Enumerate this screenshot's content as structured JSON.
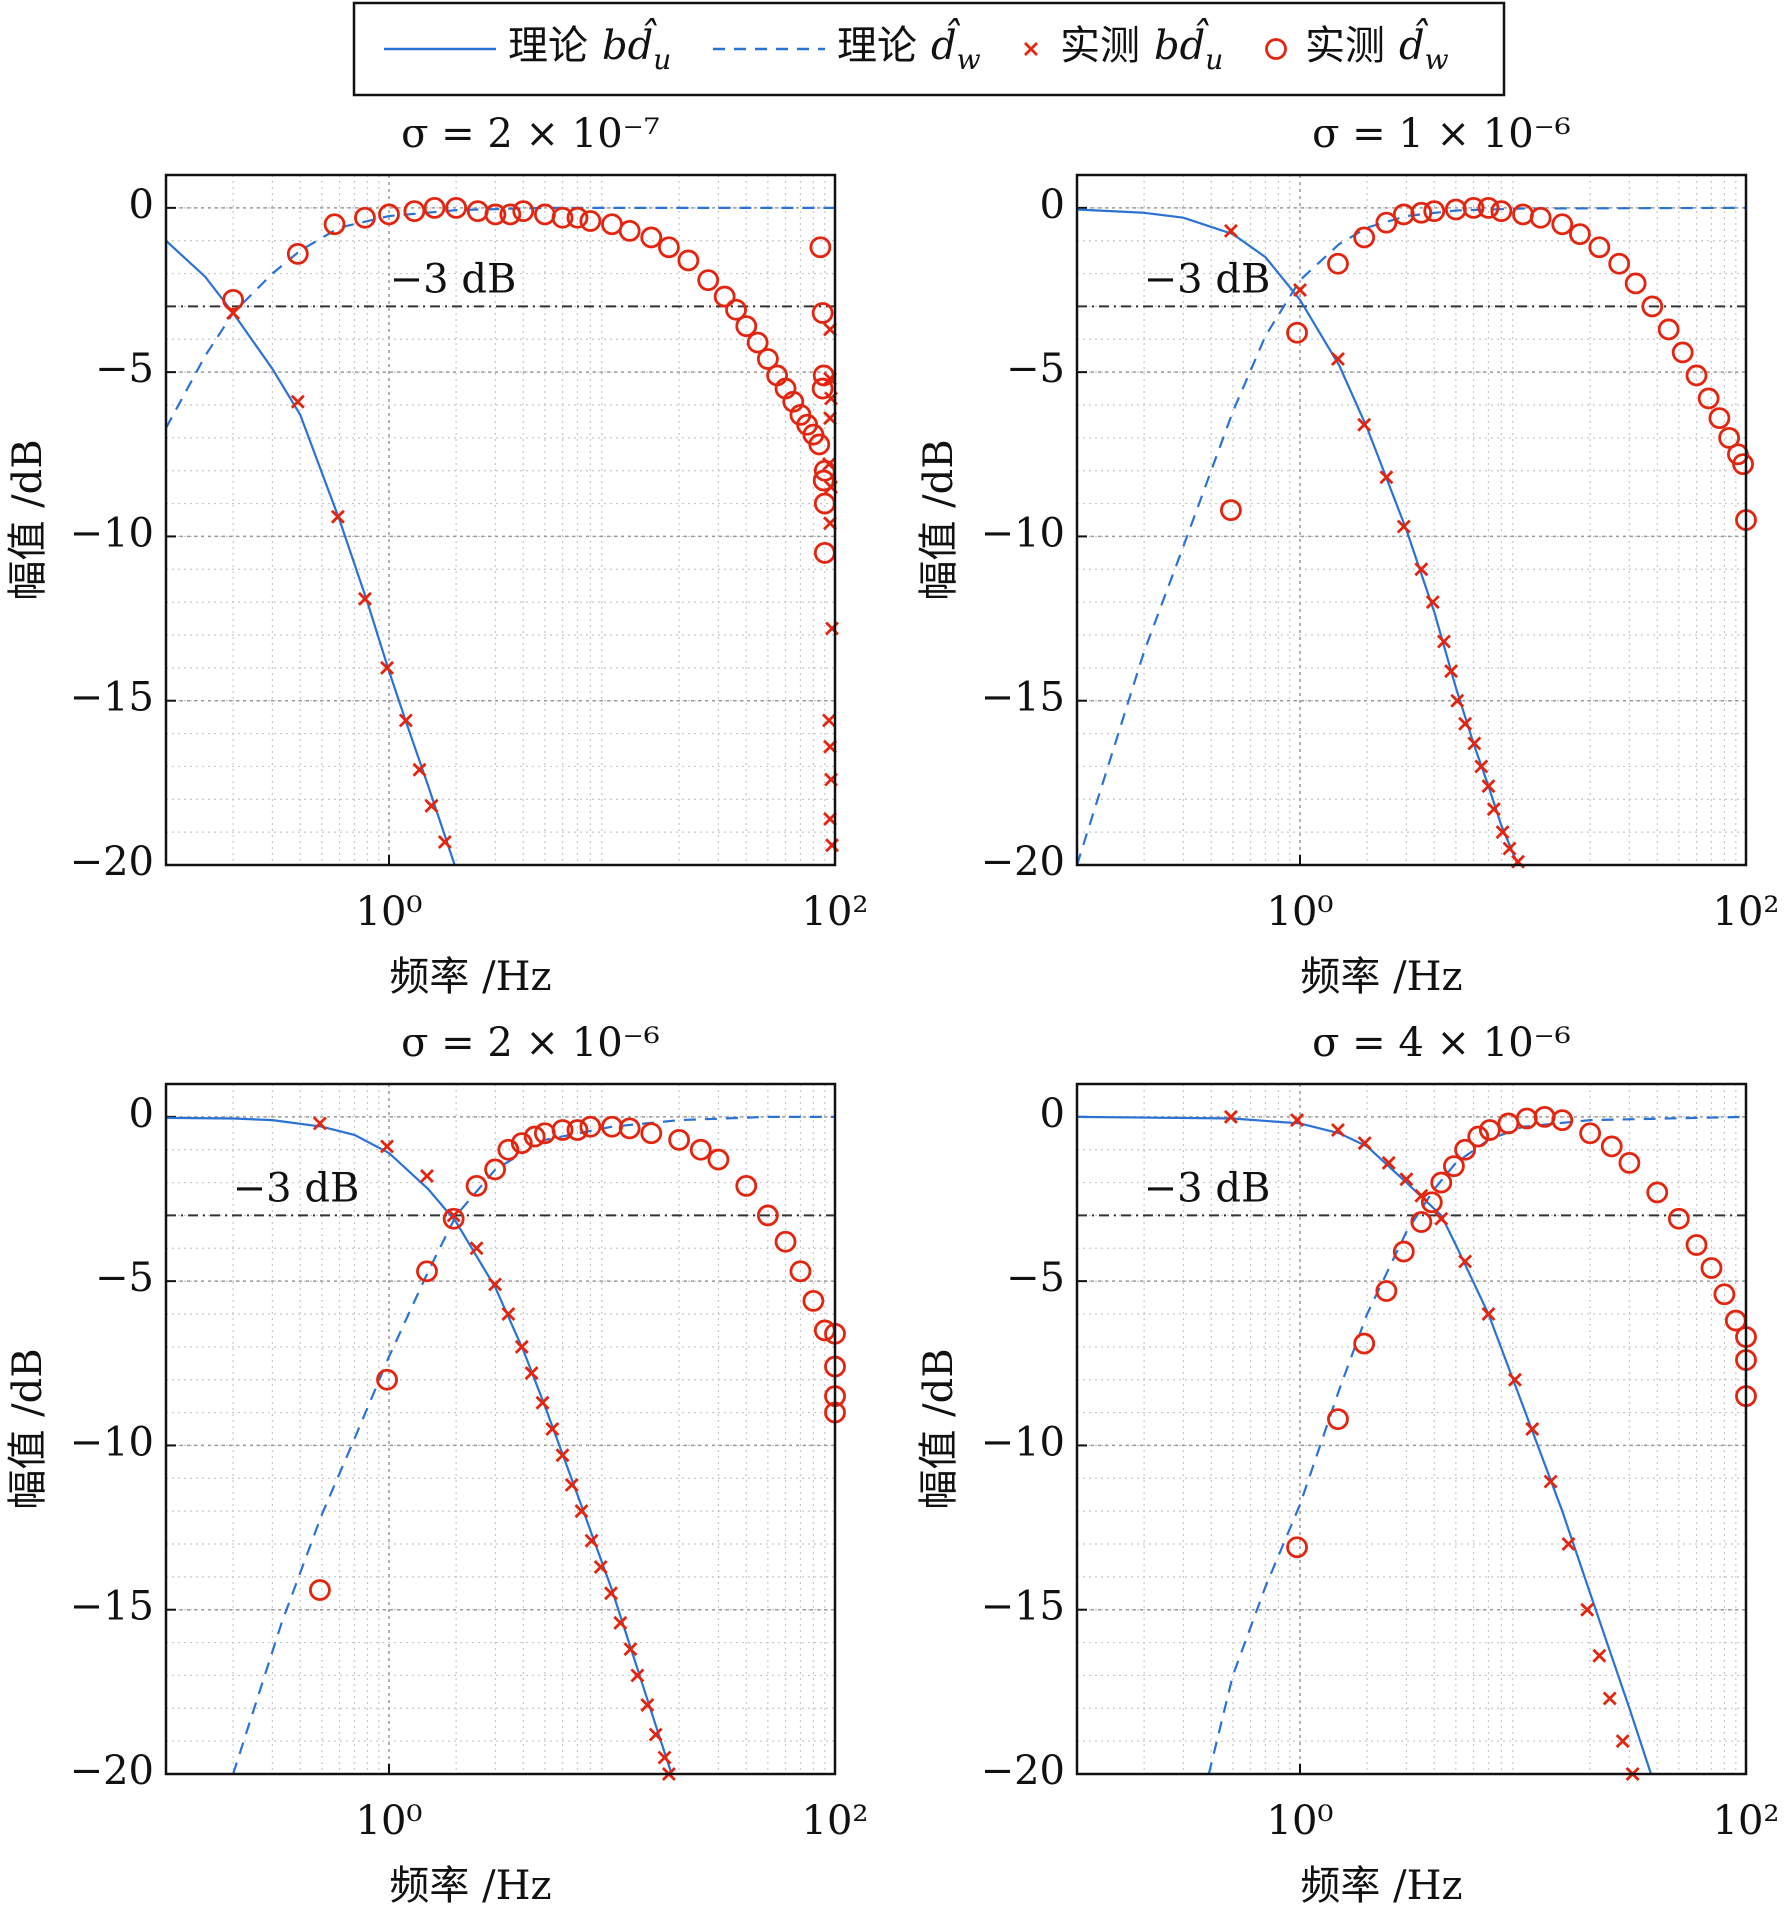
{
  "legend": {
    "entries": [
      {
        "label": "理论",
        "symbol": "bd̂",
        "subscript": "u",
        "color": "#2a72d4",
        "style": "solid"
      },
      {
        "label": "理论",
        "symbol": "d̂",
        "subscript": "w",
        "color": "#2a72d4",
        "style": "dashed"
      },
      {
        "label": "实测",
        "symbol": "bd̂",
        "subscript": "u",
        "color": "#e3250f",
        "marker": "x"
      },
      {
        "label": "实测",
        "symbol": "d̂",
        "subscript": "w",
        "color": "#e3250f",
        "marker": "o"
      }
    ]
  },
  "chart_data": [
    {
      "type": "line",
      "title": "σ = 2 × 10⁻⁷",
      "xlabel": "频率 /Hz",
      "ylabel": "幅值 /dB",
      "xscale": "log",
      "grid": true,
      "xlim": [
        0.1,
        100
      ],
      "xticks": [
        {
          "value": 1,
          "label": "10⁰"
        },
        {
          "value": 100,
          "label": "10²"
        }
      ],
      "ylim": [
        -20,
        1
      ],
      "yticks": [
        {
          "value": -20,
          "label": "−20"
        },
        {
          "value": -15,
          "label": "−15"
        },
        {
          "value": -10,
          "label": "−10"
        },
        {
          "value": -5,
          "label": "−5"
        },
        0
      ],
      "hline": {
        "value": -3,
        "label": "−3 dB"
      },
      "series": [
        {
          "type": "line",
          "style": "solid",
          "color": "#2a72d4",
          "x": [
            0.1,
            0.15,
            0.2,
            0.3,
            0.4,
            0.6,
            0.8,
            1,
            1.2,
            1.5,
            1.97
          ],
          "values": [
            -1.0,
            -2.1,
            -3.2,
            -4.9,
            -6.3,
            -9.5,
            -12,
            -14.1,
            -15.7,
            -17.6,
            -20
          ]
        },
        {
          "type": "line",
          "style": "dashed",
          "color": "#2a72d4",
          "x": [
            0.1,
            0.15,
            0.2,
            0.3,
            0.4,
            0.6,
            1,
            2,
            5,
            100
          ],
          "values": [
            -6.7,
            -4.5,
            -3.2,
            -2.0,
            -1.3,
            -0.6,
            -0.25,
            -0.07,
            0,
            0
          ]
        },
        {
          "type": "scatter",
          "marker": "x",
          "color": "#e3250f",
          "x": [
            0.2,
            0.39,
            0.59,
            0.78,
            0.98,
            1.19,
            1.37,
            1.55,
            1.78,
            95,
            95,
            96,
            95,
            94,
            96,
            95,
            97,
            94,
            95,
            96,
            95,
            97
          ],
          "values": [
            -3.2,
            -5.9,
            -9.4,
            -11.9,
            -14,
            -15.6,
            -17.1,
            -18.2,
            -19.3,
            -3.7,
            -5.2,
            -5.8,
            -6.4,
            -7.8,
            -8.5,
            -9.6,
            -12.8,
            -15.6,
            -16.4,
            -17.4,
            -18.6,
            -19.4
          ]
        },
        {
          "type": "scatter",
          "marker": "o",
          "color": "#e3250f",
          "x": [
            0.2,
            0.39,
            0.57,
            0.78,
            1,
            1.3,
            1.6,
            2,
            2.5,
            3,
            3.5,
            4,
            5,
            6,
            7,
            8,
            10,
            12,
            15,
            18,
            22,
            27,
            32,
            36,
            40,
            45,
            50,
            55,
            60,
            65,
            70,
            75,
            80,
            85,
            86,
            88,
            90,
            89,
            88,
            90,
            89,
            90
          ],
          "values": [
            -2.8,
            -1.4,
            -0.5,
            -0.3,
            -0.2,
            -0.1,
            0,
            0,
            -0.1,
            -0.2,
            -0.2,
            -0.1,
            -0.2,
            -0.3,
            -0.3,
            -0.4,
            -0.5,
            -0.7,
            -0.9,
            -1.2,
            -1.6,
            -2.2,
            -2.7,
            -3.1,
            -3.6,
            -4.1,
            -4.6,
            -5.1,
            -5.5,
            -5.9,
            -6.3,
            -6.6,
            -6.9,
            -7.2,
            -1.2,
            -3.2,
            -10.5,
            -5.1,
            -5.5,
            -8.0,
            -8.3,
            -9.0
          ]
        }
      ]
    },
    {
      "type": "line",
      "title": "σ = 1 × 10⁻⁶",
      "xlabel": "频率 /Hz",
      "ylabel": "幅值 /dB",
      "xscale": "log",
      "grid": true,
      "xlim": [
        0.1,
        100
      ],
      "xticks": [
        {
          "value": 1,
          "label": "10⁰"
        },
        {
          "value": 100,
          "label": "10²"
        }
      ],
      "ylim": [
        -20,
        1
      ],
      "yticks": [
        {
          "value": -20,
          "label": "−20"
        },
        {
          "value": -15,
          "label": "−15"
        },
        {
          "value": -10,
          "label": "−10"
        },
        {
          "value": -5,
          "label": "−5"
        },
        0
      ],
      "hline": {
        "value": -3,
        "label": "−3 dB"
      },
      "series": [
        {
          "type": "line",
          "style": "solid",
          "color": "#2a72d4",
          "x": [
            0.1,
            0.2,
            0.3,
            0.5,
            0.7,
            1,
            1.5,
            2,
            3,
            4,
            5,
            6,
            7,
            8,
            9.5
          ],
          "values": [
            -0.05,
            -0.15,
            -0.3,
            -0.8,
            -1.5,
            -2.8,
            -4.8,
            -6.7,
            -9.8,
            -12.3,
            -14.6,
            -16.3,
            -17.6,
            -18.8,
            -20
          ]
        },
        {
          "type": "line",
          "style": "dashed",
          "color": "#2a72d4",
          "x": [
            0.1,
            0.2,
            0.3,
            0.5,
            0.7,
            1,
            1.5,
            2,
            3,
            5,
            10,
            100
          ],
          "values": [
            -20,
            -13.5,
            -10.3,
            -6.2,
            -3.9,
            -2.2,
            -1.1,
            -0.6,
            -0.25,
            -0.08,
            -0.02,
            0
          ]
        },
        {
          "type": "scatter",
          "marker": "x",
          "color": "#e3250f",
          "x": [
            0.49,
            1,
            1.48,
            1.94,
            2.44,
            2.92,
            3.5,
            3.94,
            4.42,
            4.76,
            5.07,
            5.5,
            6.05,
            6.5,
            7,
            7.4,
            8.1,
            8.7,
            9.5
          ],
          "values": [
            -0.7,
            -2.5,
            -4.6,
            -6.6,
            -8.2,
            -9.7,
            -11,
            -12,
            -13.2,
            -14.1,
            -15,
            -15.7,
            -16.3,
            -17,
            -17.6,
            -18.3,
            -19,
            -19.5,
            -19.9
          ]
        },
        {
          "type": "scatter",
          "marker": "o",
          "color": "#e3250f",
          "x": [
            0.49,
            0.97,
            1.48,
            1.94,
            2.44,
            2.92,
            3.5,
            4,
            5,
            6,
            7,
            8,
            10,
            12,
            15,
            18,
            22,
            27,
            32,
            38,
            45,
            52,
            60,
            68,
            76,
            84,
            92,
            97,
            100
          ],
          "values": [
            -9.2,
            -3.8,
            -1.7,
            -0.9,
            -0.45,
            -0.2,
            -0.15,
            -0.1,
            -0.05,
            0,
            0,
            -0.1,
            -0.2,
            -0.3,
            -0.5,
            -0.8,
            -1.2,
            -1.7,
            -2.3,
            -3.0,
            -3.7,
            -4.4,
            -5.1,
            -5.8,
            -6.4,
            -7.0,
            -7.5,
            -7.8,
            -9.5
          ]
        }
      ]
    },
    {
      "type": "line",
      "title": "σ = 2 × 10⁻⁶",
      "xlabel": "频率 /Hz",
      "ylabel": "幅值 /dB",
      "xscale": "log",
      "grid": true,
      "xlim": [
        0.1,
        100
      ],
      "xticks": [
        {
          "value": 1,
          "label": "10⁰"
        },
        {
          "value": 100,
          "label": "10²"
        }
      ],
      "ylim": [
        -20,
        1
      ],
      "yticks": [
        {
          "value": -20,
          "label": "−20"
        },
        {
          "value": -15,
          "label": "−15"
        },
        {
          "value": -10,
          "label": "−10"
        },
        {
          "value": -5,
          "label": "−5"
        },
        0
      ],
      "hline": {
        "value": -3,
        "label": "−3 dB"
      },
      "series": [
        {
          "type": "line",
          "style": "solid",
          "color": "#2a72d4",
          "x": [
            0.1,
            0.2,
            0.3,
            0.5,
            0.7,
            1,
            1.5,
            2,
            3,
            4,
            5,
            7,
            10,
            15,
            18.5
          ],
          "values": [
            -0.03,
            -0.05,
            -0.1,
            -0.3,
            -0.55,
            -1.1,
            -2.2,
            -3.2,
            -5.2,
            -7.1,
            -8.8,
            -11.5,
            -14.4,
            -18.1,
            -20
          ]
        },
        {
          "type": "line",
          "style": "dashed",
          "color": "#2a72d4",
          "x": [
            0.2,
            0.33,
            0.5,
            0.7,
            1,
            1.5,
            2,
            3,
            5,
            10,
            20,
            50,
            100
          ],
          "values": [
            -20,
            -15.4,
            -12.1,
            -9.8,
            -7.3,
            -4.7,
            -3.0,
            -1.6,
            -0.7,
            -0.3,
            -0.1,
            0,
            0
          ]
        },
        {
          "type": "scatter",
          "marker": "x",
          "color": "#e3250f",
          "x": [
            0.49,
            0.98,
            1.48,
            1.95,
            2.47,
            2.99,
            3.43,
            3.94,
            4.36,
            4.88,
            5.4,
            6,
            6.6,
            7.3,
            8.1,
            8.9,
            9.9,
            10.9,
            12.1,
            13,
            14.4,
            15.7,
            17.2,
            18
          ],
          "values": [
            -0.2,
            -0.9,
            -1.8,
            -3.0,
            -4.0,
            -5.1,
            -6.0,
            -7.0,
            -7.8,
            -8.7,
            -9.5,
            -10.3,
            -11.2,
            -12,
            -12.9,
            -13.7,
            -14.5,
            -15.4,
            -16.2,
            -17,
            -17.9,
            -18.8,
            -19.5,
            -20
          ]
        },
        {
          "type": "scatter",
          "marker": "o",
          "color": "#e3250f",
          "x": [
            0.49,
            0.98,
            1.48,
            1.95,
            2.47,
            2.99,
            3.43,
            3.94,
            4.5,
            5,
            6,
            7,
            8,
            10,
            12,
            15,
            20,
            25,
            30,
            40,
            50,
            60,
            70,
            80,
            90,
            100,
            100,
            100,
            100
          ],
          "values": [
            -14.4,
            -8,
            -4.7,
            -3.1,
            -2.1,
            -1.6,
            -1.0,
            -0.8,
            -0.6,
            -0.5,
            -0.4,
            -0.4,
            -0.3,
            -0.3,
            -0.35,
            -0.5,
            -0.7,
            -1.0,
            -1.3,
            -2.1,
            -3.0,
            -3.8,
            -4.7,
            -5.6,
            -6.5,
            -7.6,
            -6.6,
            -8.5,
            -9.0
          ]
        }
      ]
    },
    {
      "type": "line",
      "title": "σ = 4 × 10⁻⁶",
      "xlabel": "频率 /Hz",
      "ylabel": "幅值 /dB",
      "xscale": "log",
      "grid": true,
      "xlim": [
        0.1,
        100
      ],
      "xticks": [
        {
          "value": 1,
          "label": "10⁰"
        },
        {
          "value": 100,
          "label": "10²"
        }
      ],
      "ylim": [
        -20,
        1
      ],
      "yticks": [
        {
          "value": -20,
          "label": "−20"
        },
        {
          "value": -15,
          "label": "−15"
        },
        {
          "value": -10,
          "label": "−10"
        },
        {
          "value": -5,
          "label": "−5"
        },
        0
      ],
      "hline": {
        "value": -3,
        "label": "−3 dB"
      },
      "series": [
        {
          "type": "line",
          "style": "solid",
          "color": "#2a72d4",
          "x": [
            0.1,
            0.5,
            1,
            1.5,
            2,
            3,
            4.3,
            5,
            7,
            10,
            15,
            20,
            30,
            37.5
          ],
          "values": [
            0,
            -0.05,
            -0.2,
            -0.5,
            -0.9,
            -2.0,
            -3.0,
            -3.9,
            -6.0,
            -8.8,
            -12,
            -14.5,
            -18,
            -20
          ]
        },
        {
          "type": "line",
          "style": "dashed",
          "color": "#2a72d4",
          "x": [
            0.39,
            0.5,
            0.7,
            1,
            1.5,
            2,
            3,
            4,
            5,
            7,
            10,
            20,
            100
          ],
          "values": [
            -20,
            -17,
            -14.3,
            -11.8,
            -8.3,
            -6,
            -3.5,
            -2.2,
            -1.4,
            -0.7,
            -0.3,
            -0.1,
            0
          ]
        },
        {
          "type": "scatter",
          "marker": "x",
          "color": "#e3250f",
          "x": [
            0.49,
            0.97,
            1.48,
            1.95,
            2.5,
            3,
            3.5,
            4.3,
            5.5,
            7,
            9.2,
            11,
            13.3,
            16,
            19.4,
            22,
            24.5,
            28,
            31
          ],
          "values": [
            0,
            -0.1,
            -0.4,
            -0.8,
            -1.4,
            -1.9,
            -2.4,
            -3.1,
            -4.4,
            -6,
            -8,
            -9.5,
            -11.1,
            -13,
            -15,
            -16.4,
            -17.7,
            -19,
            -20
          ]
        },
        {
          "type": "scatter",
          "marker": "o",
          "color": "#e3250f",
          "x": [
            0.97,
            1.48,
            1.94,
            2.44,
            2.92,
            3.5,
            3.9,
            4.3,
            4.9,
            5.5,
            6.3,
            7.1,
            8.6,
            10.4,
            12.5,
            15,
            20,
            25,
            30,
            40,
            50,
            60,
            70,
            80,
            90,
            100,
            100,
            100
          ],
          "values": [
            -13.1,
            -9.2,
            -6.9,
            -5.3,
            -4.1,
            -3.2,
            -2.6,
            -2.0,
            -1.5,
            -1.0,
            -0.6,
            -0.4,
            -0.2,
            -0.05,
            0,
            -0.1,
            -0.5,
            -0.9,
            -1.4,
            -2.3,
            -3.1,
            -3.9,
            -4.6,
            -5.4,
            -6.2,
            -7.4,
            -6.7,
            -8.5
          ]
        }
      ]
    }
  ]
}
